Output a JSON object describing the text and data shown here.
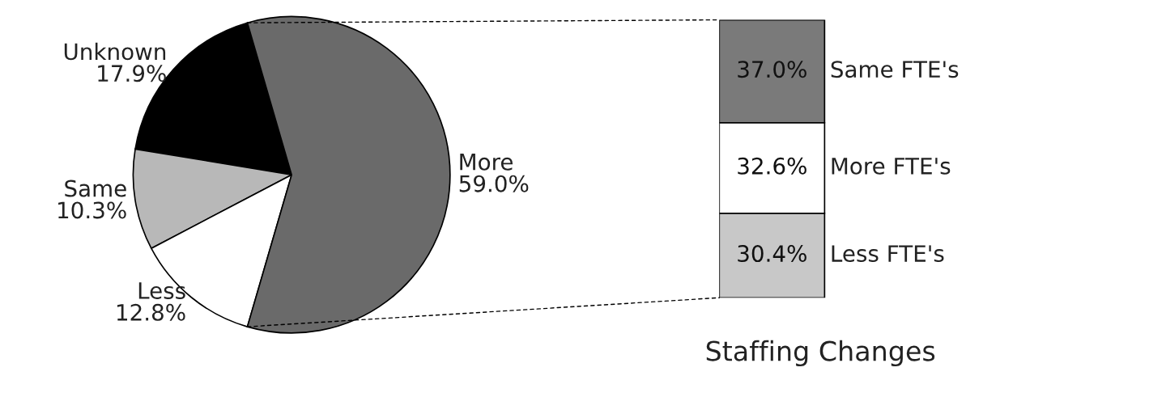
{
  "chart_data": [
    {
      "type": "pie",
      "categories": [
        "Unknown",
        "Same",
        "Less",
        "More"
      ],
      "values": [
        17.9,
        10.3,
        12.8,
        59.0
      ],
      "colors": [
        "#000000",
        "#b8b8b8",
        "#ffffff",
        "#6a6a6a"
      ],
      "value_labels": [
        "17.9%",
        "10.3%",
        "12.8%",
        "59.0%"
      ]
    },
    {
      "type": "bar",
      "stacked": true,
      "categories": [
        null
      ],
      "title": "Staffing Changes",
      "tick_labels": false,
      "series": [
        {
          "name": "Less FTE's",
          "color": "#c8c8c8",
          "values": [
            30.4
          ],
          "value_labels": [
            "30.4%"
          ]
        },
        {
          "name": "More FTE's",
          "color": "#ffffff",
          "values": [
            32.6
          ],
          "value_labels": [
            "32.6%"
          ]
        },
        {
          "name": "Same FTE's",
          "color": "#7a7a7a",
          "values": [
            37.0
          ],
          "value_labels": [
            "37.0%"
          ]
        }
      ]
    }
  ]
}
